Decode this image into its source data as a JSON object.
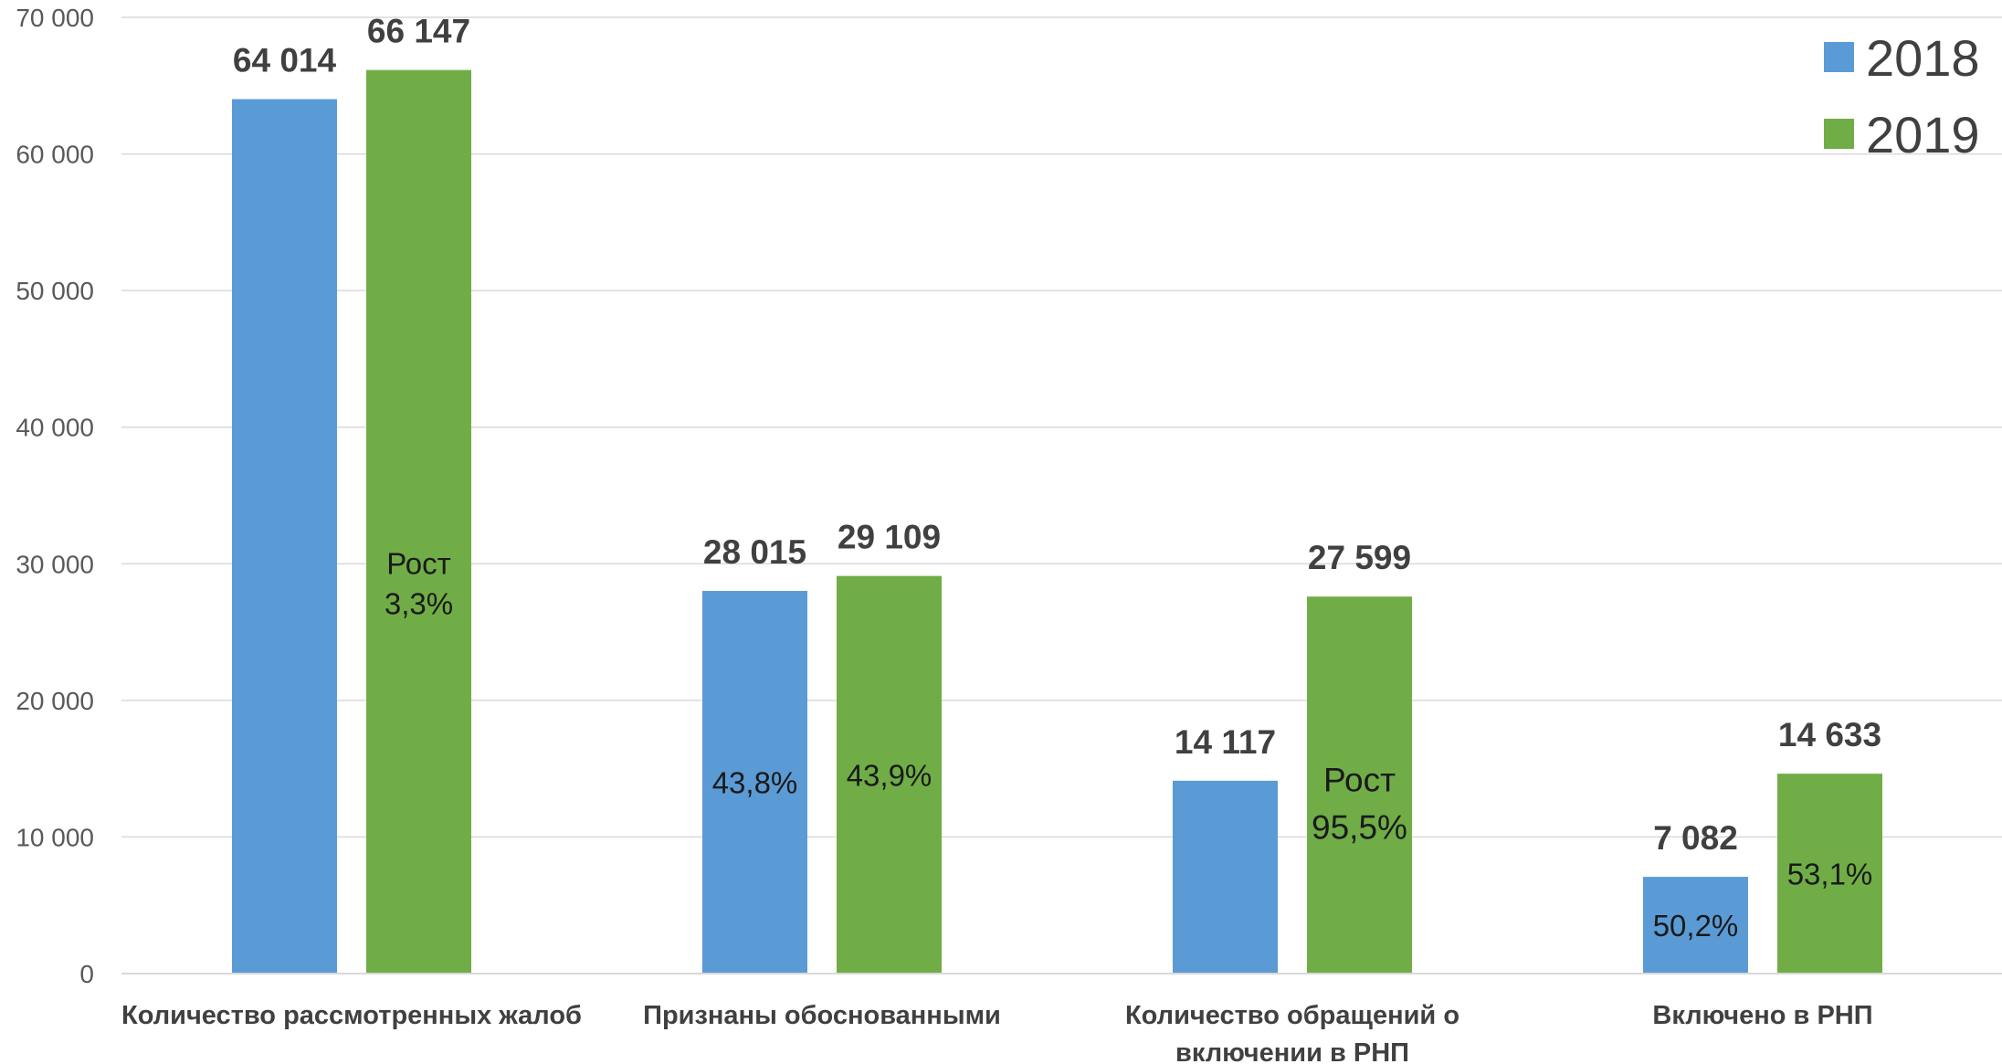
{
  "chart_data": {
    "type": "bar",
    "categories": [
      [
        "Количество рассмотренных жалоб"
      ],
      [
        "Признаны обоснованными"
      ],
      [
        "Количество обращений о",
        "включении в РНП"
      ],
      [
        "Включено в РНП"
      ]
    ],
    "series": [
      {
        "name": "2018",
        "color": "#5b9bd5",
        "values": [
          64014,
          28015,
          14117,
          7082
        ],
        "labels": [
          "64 014",
          "28 015",
          "14 117",
          "7 082"
        ],
        "notes": [
          [],
          [
            "43,8%"
          ],
          [],
          [
            "50,2%"
          ]
        ]
      },
      {
        "name": "2019",
        "color": "#70ad47",
        "values": [
          66147,
          29109,
          27599,
          14633
        ],
        "labels": [
          "66 147",
          "29 109",
          "27 599",
          "14 633"
        ],
        "notes": [
          [
            "Рост",
            "3,3%"
          ],
          [
            "43,9%"
          ],
          [
            "Рост",
            "95,5%"
          ],
          [
            "53,1%"
          ]
        ]
      }
    ],
    "y_ticks": [
      "0",
      "10 000",
      "20 000",
      "30 000",
      "40 000",
      "50 000",
      "60 000",
      "70 000"
    ],
    "ylim": [
      0,
      70000
    ],
    "grid": true,
    "legend_position": "top-right",
    "gridline_color": "#d9d9d9"
  }
}
